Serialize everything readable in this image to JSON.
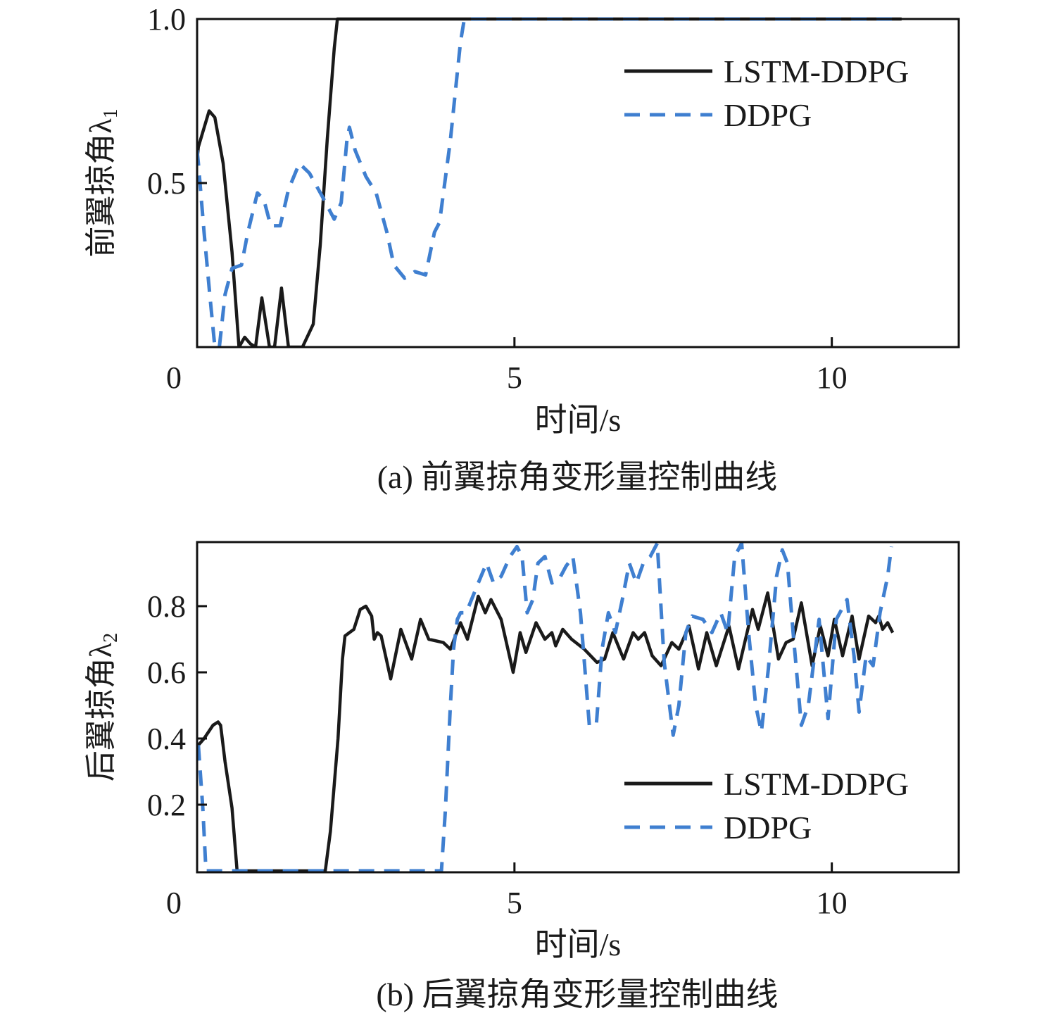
{
  "colors": {
    "lstm": "#1a1a1a",
    "ddpg": "#3f7fd0",
    "axis": "#111111"
  },
  "chart_data": [
    {
      "type": "line",
      "caption": "(a) 前翼掠角变形量控制曲线",
      "xlabel": "时间/s",
      "ylabel": "前翼掠角λ",
      "ylabel_sub": "1",
      "xlim": [
        0,
        12
      ],
      "ylim": [
        0,
        1
      ],
      "xticks": [
        0,
        5,
        10
      ],
      "xtick_labels": [
        "0",
        "5",
        "10"
      ],
      "yticks": [
        0.5,
        1.0
      ],
      "ytick_labels": [
        "0.5",
        "1.0"
      ],
      "legend": {
        "placement": "top-right",
        "entries": [
          "LSTM-DDPG",
          "DDPG"
        ]
      },
      "series": [
        {
          "name": "LSTM-DDPG",
          "style": "solid",
          "x": [
            0,
            0.02,
            0.19,
            0.28,
            0.41,
            0.55,
            0.66,
            0.75,
            0.84,
            0.92,
            1.02,
            1.14,
            1.22,
            1.33,
            1.44,
            1.66,
            1.83,
            1.94,
            2.05,
            2.16,
            2.21,
            11.1
          ],
          "y": [
            0.57,
            0.61,
            0.72,
            0.7,
            0.56,
            0.29,
            0,
            0.03,
            0.01,
            0,
            0.15,
            0,
            0,
            0.18,
            0,
            0,
            0.07,
            0.31,
            0.63,
            0.91,
            1.0,
            1.0
          ]
        },
        {
          "name": "DDPG",
          "style": "dashed",
          "x": [
            0,
            0.02,
            0.11,
            0.2,
            0.28,
            0.35,
            0.44,
            0.55,
            0.7,
            0.8,
            0.95,
            1.05,
            1.16,
            1.31,
            1.44,
            1.61,
            1.77,
            1.97,
            2.16,
            2.27,
            2.36,
            2.4,
            2.49,
            2.66,
            2.82,
            2.99,
            3.1,
            3.27,
            3.43,
            3.6,
            3.74,
            3.82,
            3.99,
            4.08,
            4.15,
            4.21,
            11.1
          ],
          "y": [
            0.6,
            0.56,
            0.35,
            0.16,
            0,
            0,
            0.16,
            0.24,
            0.25,
            0.35,
            0.47,
            0.45,
            0.37,
            0.37,
            0.48,
            0.56,
            0.53,
            0.46,
            0.39,
            0.44,
            0.63,
            0.67,
            0.6,
            0.52,
            0.47,
            0.35,
            0.25,
            0.21,
            0.23,
            0.22,
            0.35,
            0.38,
            0.63,
            0.8,
            0.93,
            1.0,
            1.0
          ]
        }
      ]
    },
    {
      "type": "line",
      "caption": "(b) 后翼掠角变形量控制曲线",
      "xlabel": "时间/s",
      "ylabel": "后翼掠角λ",
      "ylabel_sub": "2",
      "xlim": [
        0,
        12
      ],
      "ylim": [
        0,
        1
      ],
      "xticks": [
        0,
        5,
        10
      ],
      "xtick_labels": [
        "0",
        "5",
        "10"
      ],
      "yticks": [
        0.2,
        0.4,
        0.6,
        0.8
      ],
      "ytick_labels": [
        "0.2",
        "0.4",
        "0.6",
        "0.8"
      ],
      "legend": {
        "placement": "bottom-right",
        "entries": [
          "LSTM-DDPG",
          "DDPG"
        ]
      },
      "series": [
        {
          "name": "LSTM-DDPG",
          "style": "solid",
          "x": [
            0.02,
            0.11,
            0.25,
            0.33,
            0.37,
            0.44,
            0.55,
            0.63,
            2.02,
            2.1,
            2.22,
            2.29,
            2.33,
            2.4,
            2.47,
            2.57,
            2.66,
            2.75,
            2.79,
            2.84,
            2.9,
            3.05,
            3.21,
            3.38,
            3.52,
            3.65,
            3.88,
            3.99,
            4.15,
            4.26,
            4.43,
            4.54,
            4.63,
            4.79,
            4.98,
            5.09,
            5.18,
            5.34,
            5.48,
            5.59,
            5.65,
            5.76,
            5.9,
            6.1,
            6.3,
            6.42,
            6.55,
            6.72,
            6.87,
            6.95,
            7.05,
            7.17,
            7.31,
            7.48,
            7.59,
            7.75,
            7.9,
            8.03,
            8.18,
            8.38,
            8.53,
            8.75,
            8.84,
            8.99,
            9.16,
            9.28,
            9.39,
            9.52,
            9.69,
            9.82,
            9.94,
            10.04,
            10.17,
            10.32,
            10.43,
            10.58,
            10.69,
            10.74,
            10.8,
            10.88,
            10.96
          ],
          "y": [
            0.38,
            0.4,
            0.44,
            0.45,
            0.44,
            0.33,
            0.19,
            0,
            0,
            0.12,
            0.4,
            0.64,
            0.71,
            0.72,
            0.73,
            0.79,
            0.8,
            0.77,
            0.7,
            0.72,
            0.71,
            0.58,
            0.73,
            0.64,
            0.76,
            0.7,
            0.69,
            0.67,
            0.75,
            0.7,
            0.83,
            0.78,
            0.82,
            0.76,
            0.6,
            0.72,
            0.66,
            0.75,
            0.7,
            0.72,
            0.68,
            0.73,
            0.7,
            0.67,
            0.63,
            0.64,
            0.72,
            0.64,
            0.72,
            0.7,
            0.72,
            0.65,
            0.62,
            0.69,
            0.67,
            0.74,
            0.61,
            0.72,
            0.62,
            0.74,
            0.61,
            0.79,
            0.73,
            0.84,
            0.64,
            0.69,
            0.7,
            0.81,
            0.62,
            0.74,
            0.65,
            0.76,
            0.65,
            0.77,
            0.64,
            0.77,
            0.75,
            0.77,
            0.73,
            0.75,
            0.72
          ]
        },
        {
          "name": "DDPG",
          "style": "dashed",
          "x": [
            0.02,
            0.09,
            0.14,
            3.85,
            3.91,
            3.99,
            4.04,
            4.1,
            4.15,
            4.24,
            4.43,
            4.56,
            4.67,
            4.79,
            4.93,
            5.04,
            5.12,
            5.2,
            5.29,
            5.37,
            5.48,
            5.59,
            5.7,
            5.81,
            5.92,
            6.04,
            6.18,
            6.29,
            6.38,
            6.48,
            6.59,
            6.7,
            6.81,
            6.92,
            7.03,
            7.14,
            7.25,
            7.36,
            7.5,
            7.59,
            7.7,
            7.8,
            7.97,
            8.11,
            8.25,
            8.36,
            8.47,
            8.58,
            8.69,
            8.8,
            8.89,
            9.0,
            9.13,
            9.22,
            9.3,
            9.39,
            9.52,
            9.63,
            9.8,
            9.94,
            10.07,
            10.24,
            10.35,
            10.43,
            10.54,
            10.65,
            10.76,
            10.88,
            10.94
          ],
          "y": [
            0.38,
            0.19,
            0,
            0,
            0.18,
            0.5,
            0.67,
            0.76,
            0.78,
            0.78,
            0.87,
            0.93,
            0.87,
            0.89,
            0.95,
            0.98,
            0.95,
            0.78,
            0.82,
            0.93,
            0.95,
            0.87,
            0.88,
            0.92,
            0.95,
            0.78,
            0.44,
            0.44,
            0.67,
            0.78,
            0.72,
            0.82,
            0.93,
            0.87,
            0.93,
            0.95,
            0.99,
            0.63,
            0.41,
            0.5,
            0.72,
            0.77,
            0.76,
            0.72,
            0.78,
            0.72,
            0.95,
            0.99,
            0.72,
            0.5,
            0.42,
            0.61,
            0.89,
            0.97,
            0.93,
            0.72,
            0.44,
            0.5,
            0.76,
            0.46,
            0.76,
            0.82,
            0.65,
            0.48,
            0.65,
            0.62,
            0.78,
            0.89,
            0.98
          ]
        }
      ]
    }
  ]
}
